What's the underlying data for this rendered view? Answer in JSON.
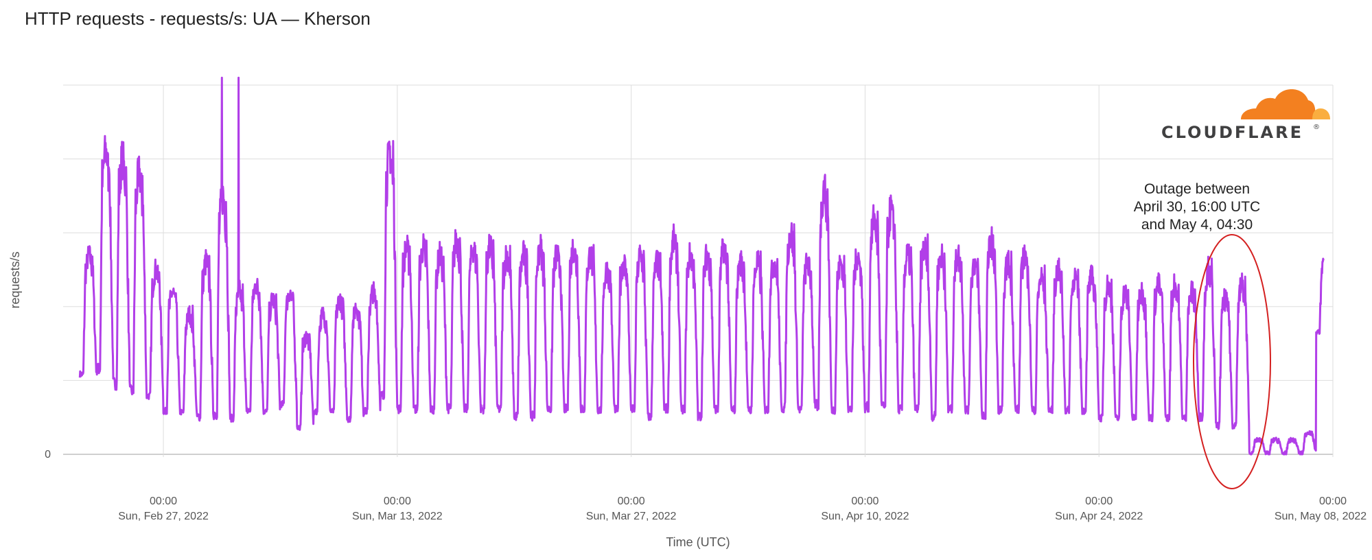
{
  "title": "HTTP requests - requests/s: UA — Kherson",
  "colors": {
    "series": "#b13ee8",
    "grid": "#dddddd",
    "outage_circle": "#d42020",
    "logo_orange": "#f38020",
    "logo_orange_light": "#faae40",
    "logo_text": "#404041"
  },
  "logo": {
    "text": "CLOUDFLARE",
    "tm": "®"
  },
  "annotation": {
    "lines": [
      "Outage between",
      "April 30, 16:00 UTC",
      "and May 4, 04:30"
    ]
  },
  "chart_data": {
    "type": "line",
    "title": "HTTP requests - requests/s: UA — Kherson",
    "xlabel": "Time (UTC)",
    "ylabel": "requests/s",
    "x_range": [
      "2022-02-22",
      "2022-05-08"
    ],
    "xlim_days_from_feb27": [
      -6.0,
      70.0
    ],
    "ylim": [
      0,
      5
    ],
    "y_gridlines": [
      0,
      1,
      2,
      3,
      4,
      5
    ],
    "y_tick_labels": [
      {
        "value": 0,
        "label": "0"
      }
    ],
    "x_ticks": [
      {
        "date": "2022-02-27",
        "time": "00:00",
        "label": "Sun, Feb 27, 2022"
      },
      {
        "date": "2022-03-13",
        "time": "00:00",
        "label": "Sun, Mar 13, 2022"
      },
      {
        "date": "2022-03-27",
        "time": "00:00",
        "label": "Sun, Mar 27, 2022"
      },
      {
        "date": "2022-04-10",
        "time": "00:00",
        "label": "Sun, Apr 10, 2022"
      },
      {
        "date": "2022-04-24",
        "time": "00:00",
        "label": "Sun, Apr 24, 2022"
      },
      {
        "date": "2022-05-08",
        "time": "00:00",
        "label": "Sun, May 08, 2022"
      }
    ],
    "grid": true,
    "legend": "none",
    "series": [
      {
        "unit": "relative requests/s",
        "start": "2022-02-22",
        "points_per_day": 1,
        "daily_peak": [
          2.7,
          4.1,
          4.0,
          3.8,
          2.5,
          2.2,
          1.9,
          2.6,
          3.5,
          2.2,
          2.3,
          2.1,
          2.2,
          1.6,
          1.9,
          2.1,
          2.0,
          2.2,
          4.1,
          2.8,
          2.8,
          2.7,
          2.9,
          2.8,
          2.8,
          2.7,
          2.7,
          2.8,
          2.7,
          2.8,
          2.7,
          2.5,
          2.6,
          2.7,
          2.6,
          2.9,
          2.7,
          2.7,
          2.8,
          2.6,
          2.6,
          2.6,
          3.0,
          2.6,
          3.6,
          2.6,
          2.7,
          3.2,
          3.3,
          2.7,
          2.8,
          2.7,
          2.7,
          2.6,
          2.9,
          2.6,
          2.7,
          2.4,
          2.5,
          2.4,
          2.4,
          2.3,
          2.2,
          2.2,
          2.3,
          2.3,
          2.2,
          2.5,
          2.1,
          2.3,
          0.2,
          0.2,
          0.2,
          0.3,
          2.7
        ],
        "daily_trough": [
          1.0,
          1.0,
          0.8,
          0.7,
          0.7,
          0.5,
          0.5,
          0.4,
          0.4,
          0.4,
          0.5,
          0.5,
          0.6,
          0.3,
          0.5,
          0.5,
          0.4,
          0.5,
          0.6,
          0.5,
          0.5,
          0.5,
          0.5,
          0.5,
          0.5,
          0.5,
          0.4,
          0.4,
          0.5,
          0.5,
          0.5,
          0.5,
          0.5,
          0.5,
          0.4,
          0.5,
          0.5,
          0.4,
          0.5,
          0.5,
          0.5,
          0.5,
          0.5,
          0.5,
          0.5,
          0.5,
          0.5,
          0.5,
          0.5,
          0.5,
          0.5,
          0.4,
          0.5,
          0.5,
          0.4,
          0.5,
          0.5,
          0.5,
          0.5,
          0.5,
          0.5,
          0.4,
          0.4,
          0.4,
          0.4,
          0.4,
          0.4,
          0.4,
          0.3,
          0.3,
          0.0,
          0.0,
          0.0,
          0.0,
          1.6
        ],
        "spikes": [
          {
            "date": "2022-03-02",
            "value": 5.1
          },
          {
            "date": "2022-03-03",
            "value": 5.1
          },
          {
            "date": "2022-03-12",
            "value": 4.2
          }
        ]
      }
    ],
    "annotations": [
      {
        "text": "Outage between April 30, 16:00 UTC and May 4, 04:30",
        "from": "2022-04-30T16:00",
        "to": "2022-05-04T04:30"
      }
    ]
  }
}
